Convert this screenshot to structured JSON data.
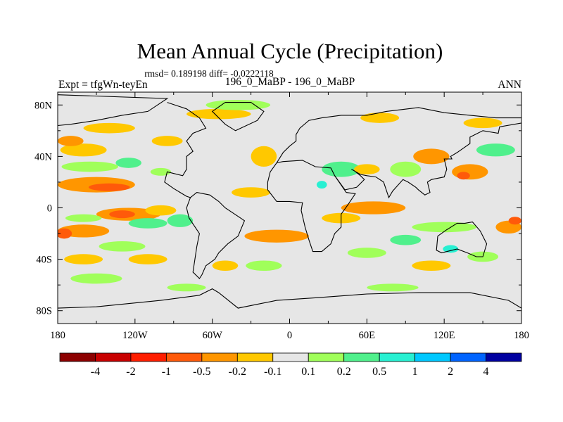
{
  "chart_data": {
    "type": "heatmap",
    "title": "Mean Annual Cycle (Precipitation)",
    "stats_line": "rmsd= 0.189198 diff= -0.0222118",
    "left_header": "Expt = tfgWn-teyEn",
    "center_header": "196_0_MaBP - 196_0_MaBP",
    "right_header": "ANN",
    "x_tick_labels": [
      "180",
      "120W",
      "60W",
      "0",
      "60E",
      "120E",
      "180"
    ],
    "x_tick_values": [
      -180,
      -120,
      -60,
      0,
      60,
      120,
      180
    ],
    "y_tick_labels": [
      "80N",
      "40N",
      "0",
      "40S",
      "80S"
    ],
    "y_tick_values": [
      80,
      40,
      0,
      -40,
      -80
    ],
    "xlim": [
      -180,
      180
    ],
    "ylim": [
      -90,
      90
    ],
    "colorbar": {
      "colors": [
        "#8c0000",
        "#c80000",
        "#ff1e00",
        "#ff5a0a",
        "#ff9600",
        "#ffc800",
        "#e6e6e6",
        "#a0ff5a",
        "#50f08c",
        "#28f0d2",
        "#00c8ff",
        "#0064ff",
        "#0000a0"
      ],
      "tick_labels": [
        "-4",
        "-2",
        "-1",
        "-0.5",
        "-0.2",
        "-0.1",
        "0.1",
        "0.2",
        "0.5",
        "1",
        "2",
        "4"
      ]
    },
    "features": [
      {
        "lon": -150,
        "lat": 18,
        "rx": 30,
        "ry": 6,
        "level": 4
      },
      {
        "lon": -140,
        "lat": 16,
        "rx": 16,
        "ry": 3,
        "level": 3
      },
      {
        "lon": -160,
        "lat": 45,
        "rx": 18,
        "ry": 5,
        "level": 5
      },
      {
        "lon": -140,
        "lat": 62,
        "rx": 20,
        "ry": 4,
        "level": 5
      },
      {
        "lon": -170,
        "lat": 52,
        "rx": 10,
        "ry": 4,
        "level": 4
      },
      {
        "lon": -155,
        "lat": 32,
        "rx": 22,
        "ry": 4,
        "level": 7
      },
      {
        "lon": -125,
        "lat": 35,
        "rx": 10,
        "ry": 4,
        "level": 8
      },
      {
        "lon": -100,
        "lat": 28,
        "rx": 8,
        "ry": 3,
        "level": 7
      },
      {
        "lon": -95,
        "lat": 52,
        "rx": 12,
        "ry": 4,
        "level": 5
      },
      {
        "lon": -125,
        "lat": -5,
        "rx": 25,
        "ry": 5,
        "level": 4
      },
      {
        "lon": -130,
        "lat": -5,
        "rx": 10,
        "ry": 3,
        "level": 3
      },
      {
        "lon": -100,
        "lat": -2,
        "rx": 12,
        "ry": 4,
        "level": 5
      },
      {
        "lon": -160,
        "lat": -18,
        "rx": 20,
        "ry": 5,
        "level": 4
      },
      {
        "lon": -175,
        "lat": -20,
        "rx": 6,
        "ry": 4,
        "level": 3
      },
      {
        "lon": -160,
        "lat": -8,
        "rx": 14,
        "ry": 3,
        "level": 7
      },
      {
        "lon": -110,
        "lat": -12,
        "rx": 15,
        "ry": 4,
        "level": 8
      },
      {
        "lon": -130,
        "lat": -30,
        "rx": 18,
        "ry": 4,
        "level": 7
      },
      {
        "lon": -85,
        "lat": -10,
        "rx": 10,
        "ry": 5,
        "level": 8
      },
      {
        "lon": -160,
        "lat": -40,
        "rx": 15,
        "ry": 4,
        "level": 5
      },
      {
        "lon": -110,
        "lat": -40,
        "rx": 15,
        "ry": 4,
        "level": 5
      },
      {
        "lon": -150,
        "lat": -55,
        "rx": 20,
        "ry": 4,
        "level": 7
      },
      {
        "lon": -80,
        "lat": -62,
        "rx": 15,
        "ry": 3,
        "level": 7
      },
      {
        "lon": -30,
        "lat": 12,
        "rx": 15,
        "ry": 4,
        "level": 5
      },
      {
        "lon": -20,
        "lat": 40,
        "rx": 10,
        "ry": 8,
        "level": 5
      },
      {
        "lon": -10,
        "lat": -22,
        "rx": 25,
        "ry": 5,
        "level": 4
      },
      {
        "lon": -20,
        "lat": -45,
        "rx": 14,
        "ry": 4,
        "level": 7
      },
      {
        "lon": -50,
        "lat": -45,
        "rx": 10,
        "ry": 4,
        "level": 5
      },
      {
        "lon": -55,
        "lat": 73,
        "rx": 25,
        "ry": 4,
        "level": 5
      },
      {
        "lon": -40,
        "lat": 80,
        "rx": 25,
        "ry": 4,
        "level": 7
      },
      {
        "lon": 40,
        "lat": 30,
        "rx": 15,
        "ry": 6,
        "level": 8
      },
      {
        "lon": 25,
        "lat": 18,
        "rx": 4,
        "ry": 3,
        "level": 9
      },
      {
        "lon": 60,
        "lat": 30,
        "rx": 10,
        "ry": 4,
        "level": 5
      },
      {
        "lon": 90,
        "lat": 30,
        "rx": 12,
        "ry": 6,
        "level": 7
      },
      {
        "lon": 110,
        "lat": 40,
        "rx": 14,
        "ry": 6,
        "level": 4
      },
      {
        "lon": 140,
        "lat": 28,
        "rx": 14,
        "ry": 6,
        "level": 4
      },
      {
        "lon": 135,
        "lat": 25,
        "rx": 5,
        "ry": 3,
        "level": 3
      },
      {
        "lon": 160,
        "lat": 45,
        "rx": 15,
        "ry": 5,
        "level": 8
      },
      {
        "lon": 150,
        "lat": 66,
        "rx": 15,
        "ry": 4,
        "level": 5
      },
      {
        "lon": 70,
        "lat": 70,
        "rx": 15,
        "ry": 4,
        "level": 5
      },
      {
        "lon": 65,
        "lat": 0,
        "rx": 25,
        "ry": 5,
        "level": 4
      },
      {
        "lon": 40,
        "lat": -8,
        "rx": 15,
        "ry": 4,
        "level": 5
      },
      {
        "lon": 90,
        "lat": -25,
        "rx": 12,
        "ry": 4,
        "level": 8
      },
      {
        "lon": 120,
        "lat": -15,
        "rx": 25,
        "ry": 4,
        "level": 7
      },
      {
        "lon": 170,
        "lat": -15,
        "rx": 10,
        "ry": 5,
        "level": 4
      },
      {
        "lon": 175,
        "lat": -10,
        "rx": 5,
        "ry": 3,
        "level": 3
      },
      {
        "lon": 60,
        "lat": -35,
        "rx": 15,
        "ry": 4,
        "level": 7
      },
      {
        "lon": 110,
        "lat": -45,
        "rx": 15,
        "ry": 4,
        "level": 5
      },
      {
        "lon": 125,
        "lat": -32,
        "rx": 6,
        "ry": 3,
        "level": 9
      },
      {
        "lon": 80,
        "lat": -62,
        "rx": 20,
        "ry": 3,
        "level": 7
      },
      {
        "lon": 150,
        "lat": -38,
        "rx": 12,
        "ry": 4,
        "level": 7
      }
    ],
    "coastlines": [
      [
        [
          -180,
          88
        ],
        [
          -95,
          85
        ],
        [
          -110,
          75
        ],
        [
          -130,
          72
        ],
        [
          -150,
          68
        ],
        [
          -170,
          65
        ],
        [
          -180,
          64
        ]
      ],
      [
        [
          -95,
          82
        ],
        [
          -80,
          77
        ],
        [
          -70,
          70
        ],
        [
          -65,
          62
        ],
        [
          -75,
          58
        ],
        [
          -80,
          52
        ],
        [
          -75,
          44
        ],
        [
          -80,
          40
        ],
        [
          -80,
          30
        ],
        [
          -83,
          25
        ],
        [
          -95,
          28
        ],
        [
          -97,
          20
        ],
        [
          -90,
          15
        ],
        [
          -80,
          9
        ],
        [
          -77,
          8
        ]
      ],
      [
        [
          -77,
          8
        ],
        [
          -72,
          12
        ],
        [
          -62,
          10
        ],
        [
          -55,
          5
        ],
        [
          -50,
          0
        ],
        [
          -38,
          -8
        ],
        [
          -35,
          -10
        ],
        [
          -40,
          -22
        ],
        [
          -48,
          -28
        ],
        [
          -55,
          -35
        ],
        [
          -58,
          -40
        ],
        [
          -65,
          -45
        ],
        [
          -68,
          -52
        ],
        [
          -70,
          -55
        ],
        [
          -75,
          -50
        ],
        [
          -72,
          -30
        ],
        [
          -70,
          -20
        ],
        [
          -78,
          -8
        ],
        [
          -80,
          0
        ],
        [
          -77,
          8
        ]
      ],
      [
        [
          -50,
          82
        ],
        [
          -30,
          82
        ],
        [
          -20,
          75
        ],
        [
          -25,
          68
        ],
        [
          -42,
          60
        ],
        [
          -50,
          65
        ],
        [
          -60,
          75
        ],
        [
          -50,
          82
        ]
      ],
      [
        [
          -10,
          35
        ],
        [
          -5,
          43
        ],
        [
          0,
          48
        ],
        [
          5,
          52
        ],
        [
          5,
          57
        ],
        [
          8,
          62
        ],
        [
          15,
          68
        ],
        [
          25,
          70
        ],
        [
          40,
          72
        ],
        [
          60,
          72
        ],
        [
          75,
          75
        ],
        [
          100,
          78
        ],
        [
          120,
          74
        ],
        [
          140,
          72
        ],
        [
          160,
          70
        ],
        [
          180,
          70
        ]
      ],
      [
        [
          -10,
          35
        ],
        [
          -15,
          28
        ],
        [
          -17,
          20
        ],
        [
          -17,
          14
        ],
        [
          -10,
          5
        ],
        [
          0,
          5
        ],
        [
          10,
          4
        ],
        [
          9,
          -2
        ],
        [
          12,
          -15
        ],
        [
          15,
          -25
        ],
        [
          18,
          -34
        ],
        [
          25,
          -34
        ],
        [
          32,
          -28
        ],
        [
          35,
          -20
        ],
        [
          40,
          -15
        ],
        [
          40,
          -5
        ],
        [
          45,
          2
        ],
        [
          51,
          11
        ],
        [
          44,
          12
        ],
        [
          35,
          25
        ],
        [
          32,
          31
        ],
        [
          20,
          32
        ],
        [
          10,
          37
        ],
        [
          -5,
          36
        ],
        [
          -10,
          35
        ]
      ],
      [
        [
          35,
          25
        ],
        [
          43,
          14
        ],
        [
          52,
          16
        ],
        [
          58,
          22
        ],
        [
          55,
          25
        ],
        [
          50,
          29
        ],
        [
          48,
          30
        ],
        [
          55,
          26
        ],
        [
          60,
          25
        ],
        [
          67,
          24
        ],
        [
          73,
          20
        ],
        [
          77,
          8
        ],
        [
          80,
          13
        ],
        [
          88,
          22
        ],
        [
          92,
          20
        ],
        [
          98,
          16
        ],
        [
          100,
          14
        ],
        [
          105,
          10
        ],
        [
          109,
          12
        ],
        [
          107,
          20
        ],
        [
          110,
          22
        ],
        [
          120,
          24
        ],
        [
          122,
          30
        ],
        [
          120,
          38
        ],
        [
          126,
          38
        ],
        [
          125,
          40
        ],
        [
          130,
          43
        ],
        [
          140,
          50
        ],
        [
          140,
          55
        ],
        [
          150,
          60
        ],
        [
          162,
          58
        ],
        [
          163,
          63
        ],
        [
          180,
          66
        ]
      ],
      [
        [
          115,
          -22
        ],
        [
          114,
          -33
        ],
        [
          118,
          -35
        ],
        [
          130,
          -32
        ],
        [
          138,
          -35
        ],
        [
          145,
          -38
        ],
        [
          150,
          -38
        ],
        [
          153,
          -28
        ],
        [
          148,
          -18
        ],
        [
          142,
          -11
        ],
        [
          136,
          -12
        ],
        [
          130,
          -12
        ],
        [
          122,
          -17
        ],
        [
          115,
          -22
        ]
      ],
      [
        [
          -180,
          -78
        ],
        [
          -150,
          -77
        ],
        [
          -100,
          -72
        ],
        [
          -70,
          -68
        ],
        [
          -60,
          -63
        ],
        [
          -55,
          -66
        ],
        [
          -40,
          -78
        ],
        [
          -10,
          -72
        ],
        [
          20,
          -70
        ],
        [
          60,
          -67
        ],
        [
          100,
          -66
        ],
        [
          140,
          -66
        ],
        [
          170,
          -72
        ],
        [
          180,
          -78
        ]
      ]
    ]
  }
}
